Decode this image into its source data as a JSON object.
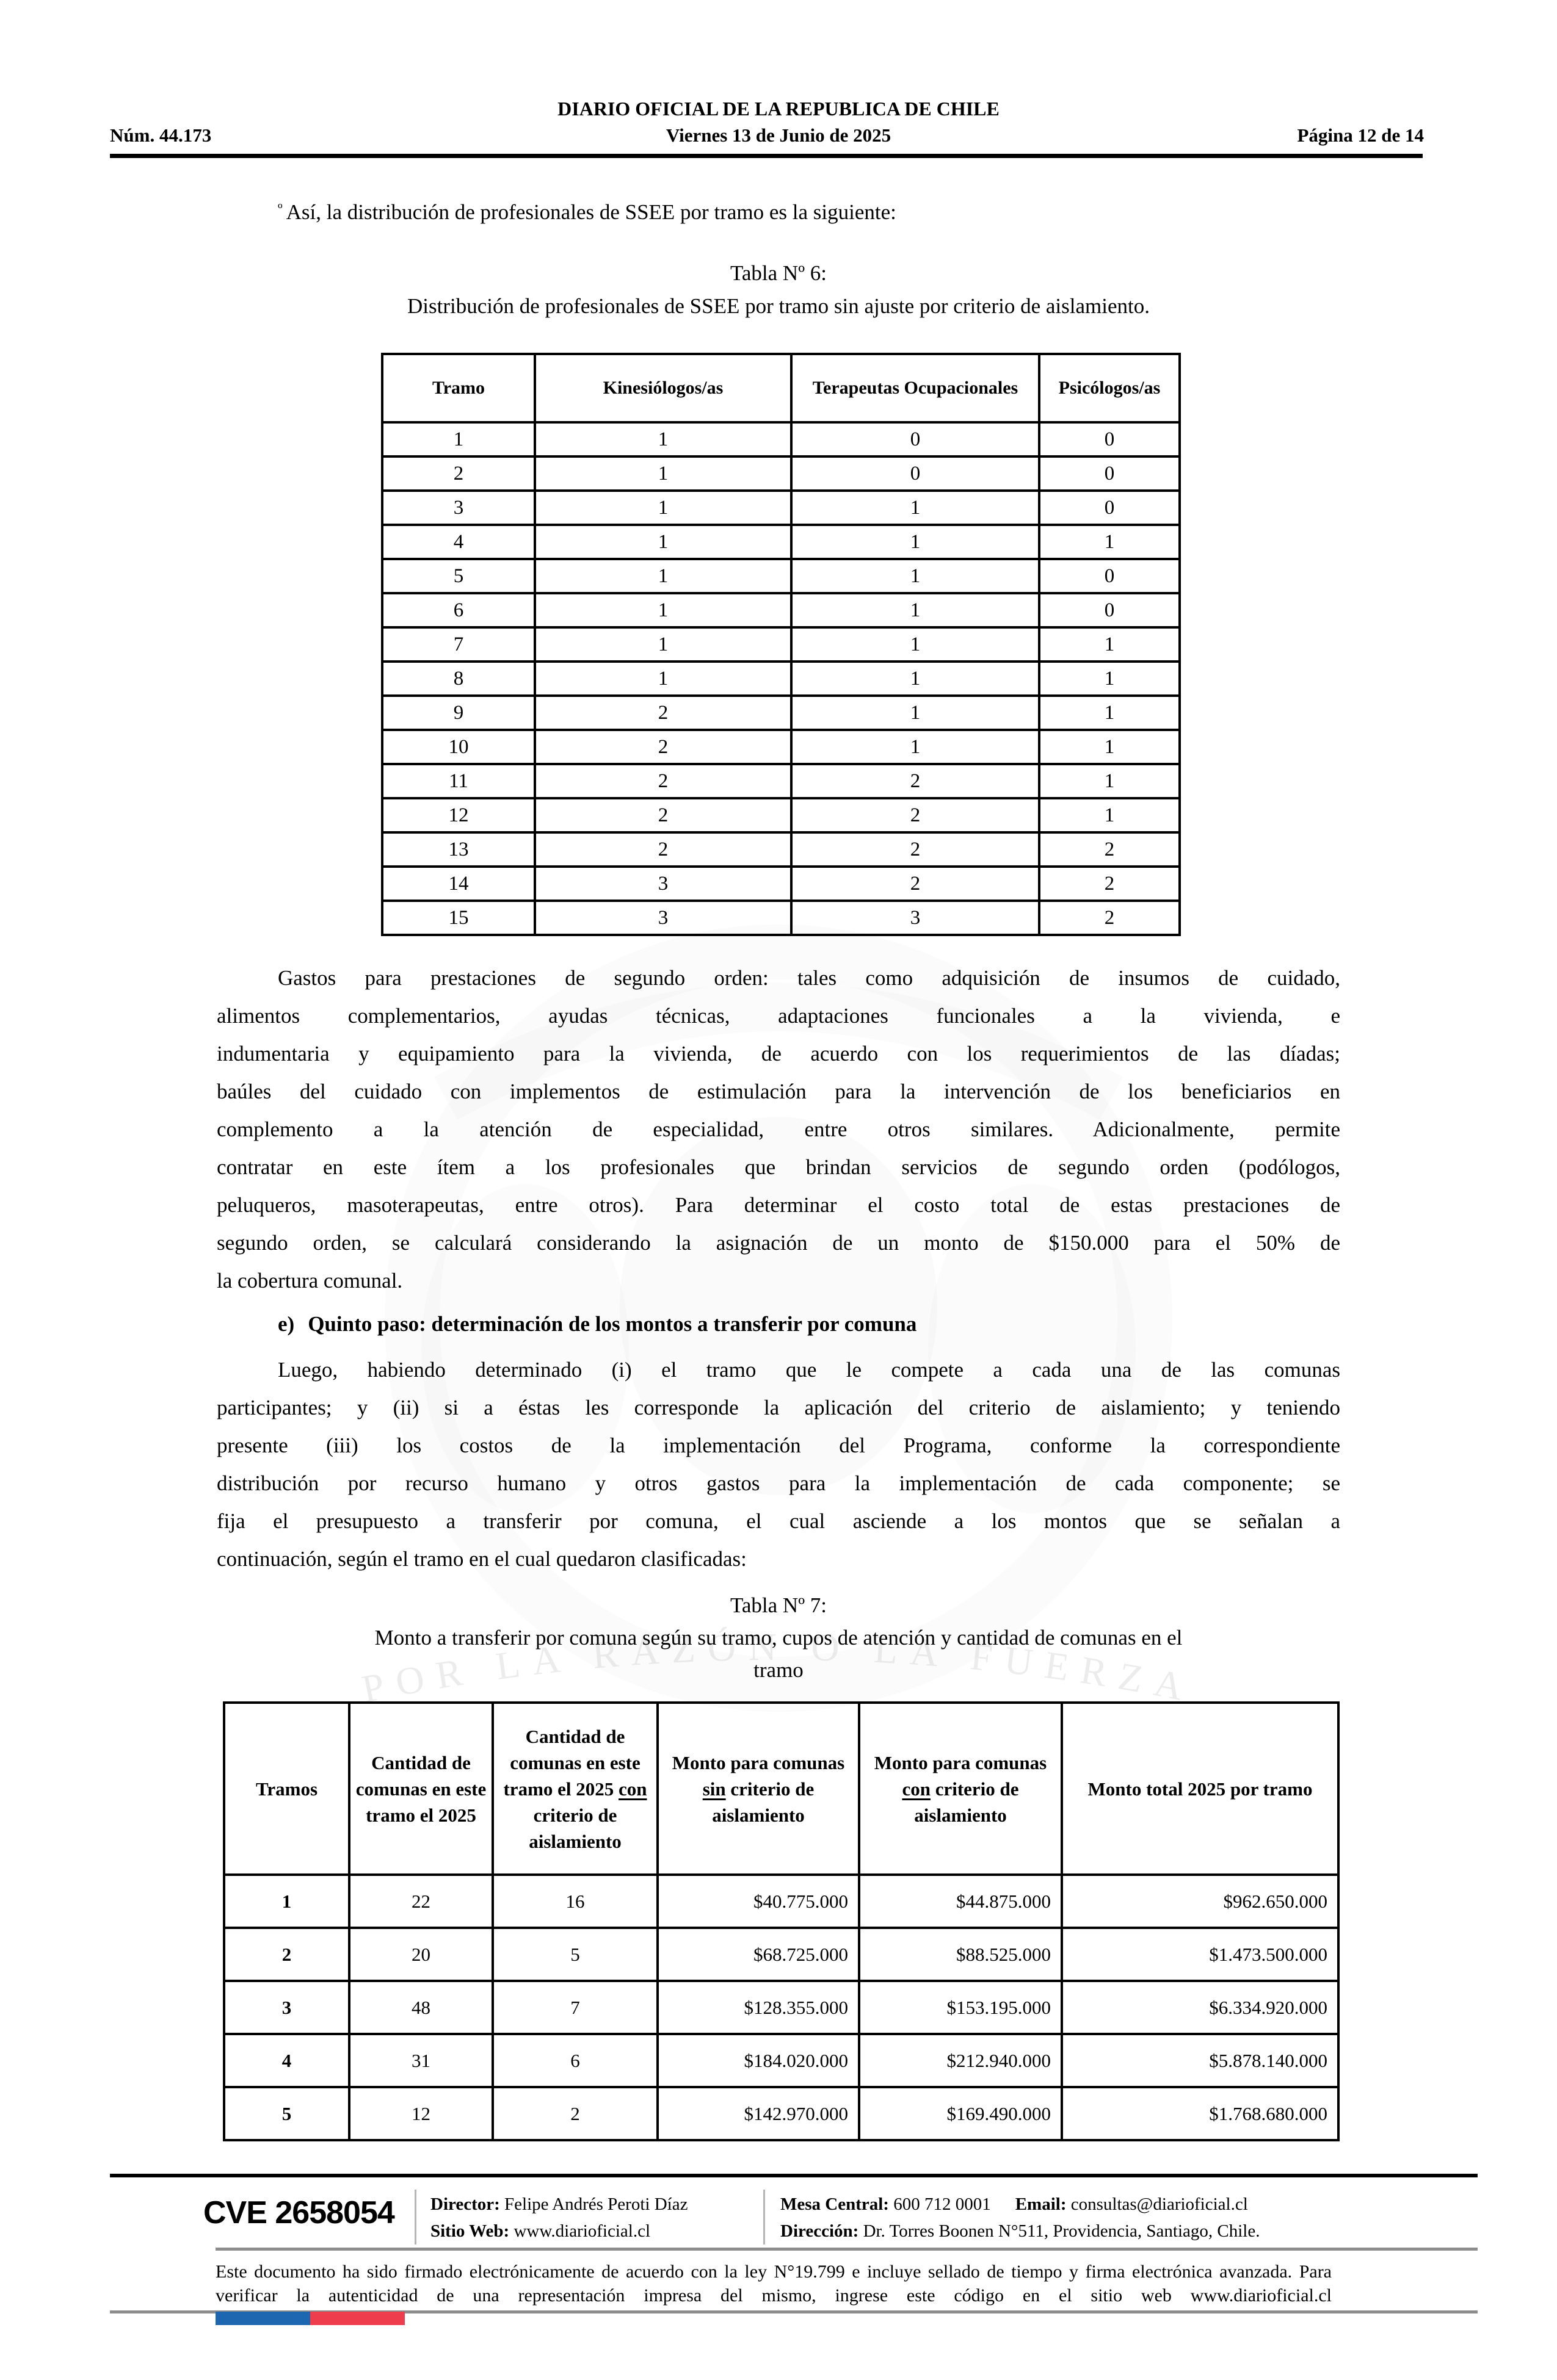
{
  "header": {
    "paper": "DIARIO OFICIAL DE LA REPUBLICA DE CHILE",
    "num": "Núm. 44.173",
    "date": "Viernes 13 de Junio de 2025",
    "page": "Página 12 de 14"
  },
  "intro": {
    "marker": "º",
    "text": "Así, la distribución de profesionales de SSEE por tramo es la siguiente:"
  },
  "tabla6": {
    "caption_line1": "Tabla Nº 6:",
    "caption_line2": "Distribución de profesionales de SSEE por tramo sin ajuste por criterio de aislamiento.",
    "headers": [
      "Tramo",
      "Kinesiólogos/as",
      "Terapeutas Ocupacionales",
      "Psicólogos/as"
    ],
    "rows": [
      [
        "1",
        "1",
        "0",
        "0"
      ],
      [
        "2",
        "1",
        "0",
        "0"
      ],
      [
        "3",
        "1",
        "1",
        "0"
      ],
      [
        "4",
        "1",
        "1",
        "1"
      ],
      [
        "5",
        "1",
        "1",
        "0"
      ],
      [
        "6",
        "1",
        "1",
        "0"
      ],
      [
        "7",
        "1",
        "1",
        "1"
      ],
      [
        "8",
        "1",
        "1",
        "1"
      ],
      [
        "9",
        "2",
        "1",
        "1"
      ],
      [
        "10",
        "2",
        "1",
        "1"
      ],
      [
        "11",
        "2",
        "2",
        "1"
      ],
      [
        "12",
        "2",
        "2",
        "1"
      ],
      [
        "13",
        "2",
        "2",
        "2"
      ],
      [
        "14",
        "3",
        "2",
        "2"
      ],
      [
        "15",
        "3",
        "3",
        "2"
      ]
    ]
  },
  "paragraphs": {
    "gastos_lines": [
      "Gastos para prestaciones de segundo orden: tales como adquisición de insumos de cuidado,",
      "alimentos complementarios, ayudas técnicas, adaptaciones funcionales a la vivienda, e",
      "indumentaria y equipamiento para la vivienda, de acuerdo con los requerimientos de las díadas;",
      "baúles del cuidado con implementos de estimulación para la intervención de los beneficiarios en",
      "complemento a la atención de especialidad, entre otros similares. Adicionalmente, permite",
      "contratar en este ítem a los profesionales que brindan servicios de segundo orden (podólogos,",
      "peluqueros, masoterapeutas, entre otros). Para determinar el costo total de estas prestaciones de",
      "segundo orden, se calculará considerando la asignación de un monto de $150.000 para el 50% de",
      "la cobertura comunal."
    ],
    "heading_e_label": "e)",
    "heading_e_text": "Quinto paso: determinación de los montos a transferir por comuna",
    "luego_lines": [
      "Luego, habiendo determinado (i) el tramo que le compete a cada una de las comunas",
      "participantes; y (ii) si a éstas les corresponde la aplicación del criterio de aislamiento; y teniendo",
      "presente (iii) los costos de la implementación del Programa, conforme la correspondiente",
      "distribución por recurso humano y otros gastos para la implementación de cada componente; se",
      "fija el presupuesto a transferir por comuna, el cual asciende a los montos que se señalan a",
      "continuación, según el tramo en el cual quedaron clasificadas:"
    ]
  },
  "tabla7": {
    "caption_line1": "Tabla Nº 7:",
    "caption_line2": "Monto a transferir por comuna según su tramo, cupos de atención y cantidad de comunas en el",
    "caption_line3": "tramo",
    "headers": [
      {
        "pre": "Tramos",
        "u": "",
        "post": ""
      },
      {
        "pre": "Cantidad de comunas en este tramo el 2025",
        "u": "",
        "post": ""
      },
      {
        "pre": "Cantidad de comunas en este tramo el 2025 ",
        "u": "con",
        "post": " criterio de aislamiento"
      },
      {
        "pre": "Monto para comunas ",
        "u": "sin",
        "post": " criterio de aislamiento"
      },
      {
        "pre": "Monto para comunas ",
        "u": "con",
        "post": " criterio de aislamiento"
      },
      {
        "pre": "Monto total 2025 por tramo",
        "u": "",
        "post": ""
      }
    ],
    "rows": [
      [
        "1",
        "22",
        "16",
        "$40.775.000",
        "$44.875.000",
        "$962.650.000"
      ],
      [
        "2",
        "20",
        "5",
        "$68.725.000",
        "$88.525.000",
        "$1.473.500.000"
      ],
      [
        "3",
        "48",
        "7",
        "$128.355.000",
        "$153.195.000",
        "$6.334.920.000"
      ],
      [
        "4",
        "31",
        "6",
        "$184.020.000",
        "$212.940.000",
        "$5.878.140.000"
      ],
      [
        "5",
        "12",
        "2",
        "$142.970.000",
        "$169.490.000",
        "$1.768.680.000"
      ]
    ]
  },
  "footer": {
    "cve": "CVE 2658054",
    "director_label": "Director:",
    "director_value": " Felipe Andrés Peroti Díaz",
    "sitio_label": "Sitio Web:",
    "sitio_value": " www.diarioficial.cl",
    "mesa_label": "Mesa Central:",
    "mesa_value": " 600 712 0001",
    "email_label": "Email:",
    "email_value": " consultas@diarioficial.cl",
    "direccion_label": "Dirección:",
    "direccion_value": " Dr. Torres Boonen N°511, Providencia, Santiago, Chile.",
    "legal": "Este documento ha sido firmado electrónicamente de acuerdo con la ley N°19.799 e incluye sellado de tiempo y firma electrónica avanzada. Para verificar la autenticidad de una representación impresa del mismo, ingrese este código en el sitio web www.diarioficial.cl"
  },
  "watermark": {
    "ribbon": "POR LA RAZÓN O LA FUERZA"
  },
  "colors": {
    "flag_blue": "#1d67b0",
    "flag_red": "#ee3e4d",
    "rule_gray": "#8c8c8c"
  }
}
